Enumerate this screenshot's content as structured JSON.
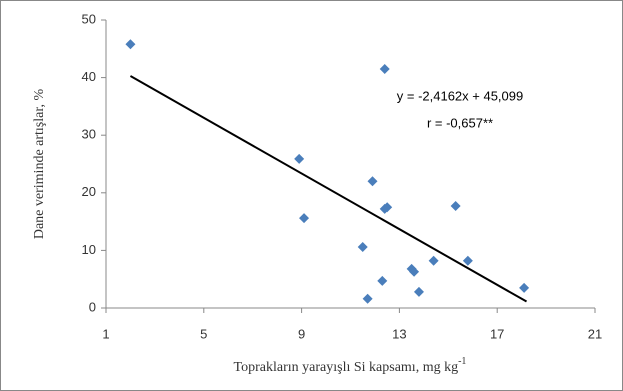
{
  "chart_data": {
    "type": "scatter",
    "x_label": {
      "text": "Toprakların yarayışlı Si kapsamı, mg kg",
      "superscript": "-1"
    },
    "y_label": "Dane veriminde artışlar, %",
    "series": [
      {
        "color": "#4a7ebb",
        "x": [
          2.0,
          12.4,
          8.9,
          11.9,
          15.3,
          12.5,
          12.4,
          9.1,
          11.5,
          14.4,
          15.8,
          13.5,
          13.6,
          12.3,
          18.1,
          13.8,
          11.7
        ],
        "values": [
          45.8,
          41.5,
          25.9,
          22.0,
          17.7,
          17.5,
          17.2,
          15.6,
          10.6,
          8.2,
          8.2,
          6.8,
          6.3,
          4.7,
          3.5,
          2.8,
          1.6
        ]
      }
    ],
    "trendline": {
      "color": "#000000",
      "x": [
        2.0,
        18.2
      ],
      "y": [
        40.27,
        1.12
      ]
    },
    "annotations": [
      "y = -2,4162x + 45,099",
      "r = -0,657**"
    ],
    "xlim": [
      1,
      21
    ],
    "xticks": [
      1,
      5,
      9,
      13,
      17,
      21
    ],
    "ylim": [
      0,
      50
    ],
    "yticks": [
      0,
      10,
      20,
      30,
      40,
      50
    ],
    "grid": false
  }
}
